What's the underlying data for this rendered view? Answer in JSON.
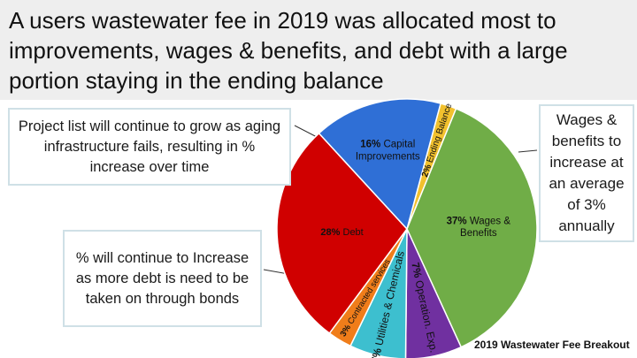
{
  "title": "A users wastewater fee in 2019 was allocated most to improvements, wages & benefits, and debt with a large portion staying in the ending balance",
  "callouts": {
    "project_list": "Project list will continue to grow as aging infrastructure fails, resulting in % increase over time",
    "wages": "Wages & benefits to increase at an average of 3% annually",
    "debt": "% will continue to Increase  as more debt is need to be taken on through bonds"
  },
  "chart_data": {
    "type": "pie",
    "title": "2019 Wastewater Fee Breakout",
    "slices": [
      {
        "pct": "2%",
        "label": "Ending Balance",
        "value": 2,
        "color": "#f2c12e"
      },
      {
        "pct": "37%",
        "label": "Wages & Benefits",
        "value": 37,
        "color": "#70ad47"
      },
      {
        "pct": "7%",
        "label": "Operation. Exp.",
        "value": 7,
        "color": "#7030a0"
      },
      {
        "pct": "7%",
        "label": "Utilities & Chemicals",
        "value": 7,
        "color": "#3dbfcf"
      },
      {
        "pct": "3%",
        "label": "Contracted services",
        "value": 3,
        "color": "#f07d1a"
      },
      {
        "pct": "28%",
        "label": "Debt",
        "value": 28,
        "color": "#d00000"
      },
      {
        "pct": "16%",
        "label": "Capital Improvements",
        "value": 16,
        "color": "#2f6fd6"
      }
    ]
  },
  "colors": {
    "header_bg": "#eeeeee",
    "callout_border": "#cfe0e6"
  }
}
